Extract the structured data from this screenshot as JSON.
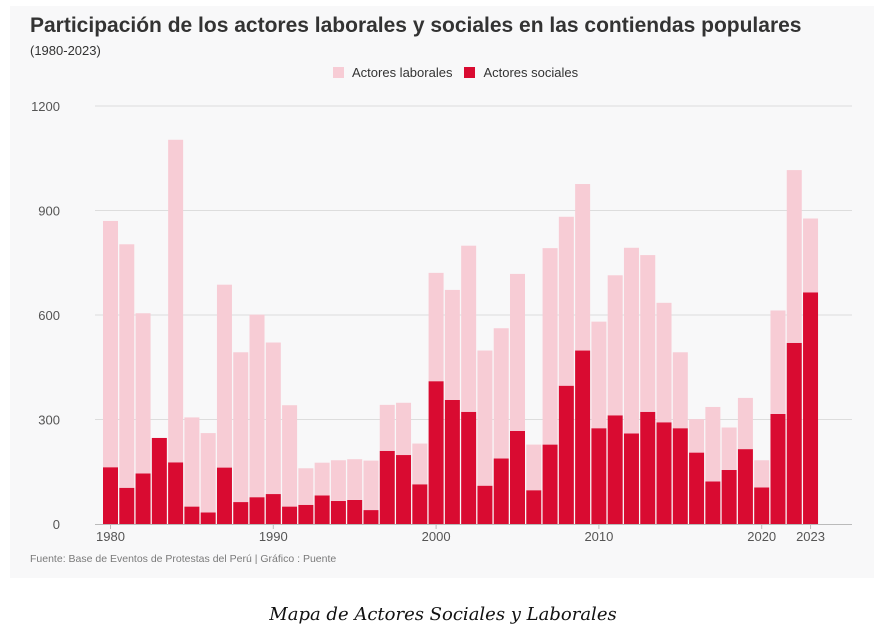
{
  "colors": {
    "laborales": "#f7ccd5",
    "sociales": "#d90b31",
    "grid": "#dddddd",
    "axis": "#bbbbbb"
  },
  "caption": "Mapa de Actores Sociales y Laborales",
  "chart_data": {
    "type": "bar",
    "stacked": true,
    "title": "Participación de los actores laborales y sociales en las contiendas populares",
    "subtitle": "(1980-2023)",
    "source": "Fuente: Base de Eventos de Protestas del Perú | Gráfico : Puente",
    "legend": [
      "Actores laborales",
      "Actores sociales"
    ],
    "legend_position": "top-center",
    "ylim": [
      0,
      1200
    ],
    "yticks": [
      0,
      300,
      600,
      900,
      1200
    ],
    "xticks": [
      "1980",
      "1990",
      "2000",
      "2010",
      "2020",
      "2023"
    ],
    "categories": [
      "1980",
      "1981",
      "1982",
      "1983",
      "1984",
      "1985",
      "1986",
      "1987",
      "1988",
      "1989",
      "1990",
      "1991",
      "1992",
      "1993",
      "1994",
      "1995",
      "1996",
      "1997",
      "1998",
      "1999",
      "2000",
      "2001",
      "2002",
      "2003",
      "2004",
      "2005",
      "2006",
      "2007",
      "2008",
      "2009",
      "2010",
      "2011",
      "2012",
      "2013",
      "2014",
      "2015",
      "2016",
      "2017",
      "2018",
      "2019",
      "2020",
      "2021",
      "2022",
      "2023"
    ],
    "series": [
      {
        "name": "Actores sociales",
        "values": [
          163,
          104,
          145,
          247,
          177,
          50,
          33,
          162,
          63,
          77,
          86,
          50,
          55,
          82,
          66,
          69,
          40,
          210,
          198,
          114,
          410,
          356,
          322,
          110,
          188,
          267,
          97,
          228,
          397,
          498,
          275,
          312,
          260,
          322,
          292,
          275,
          205,
          122,
          155,
          215,
          105,
          316,
          520,
          665
        ]
      },
      {
        "name": "Actores laborales",
        "values": [
          707,
          699,
          460,
          0,
          926,
          256,
          228,
          525,
          430,
          524,
          435,
          291,
          105,
          94,
          117,
          117,
          142,
          132,
          150,
          117,
          311,
          316,
          477,
          388,
          374,
          451,
          131,
          564,
          485,
          478,
          306,
          402,
          533,
          450,
          343,
          218,
          96,
          214,
          122,
          147,
          78,
          297,
          496,
          212
        ]
      }
    ]
  }
}
